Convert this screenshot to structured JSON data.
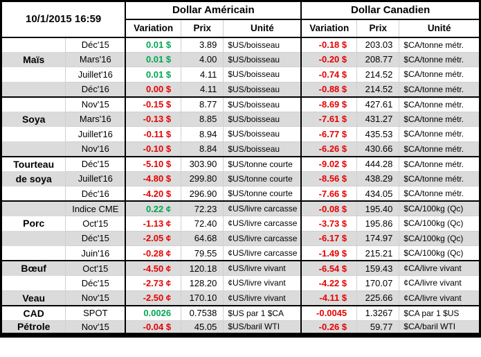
{
  "meta": {
    "timestamp": "10/1/2015 16:59"
  },
  "header": {
    "us_group": "Dollar Américain",
    "ca_group": "Dollar Canadien",
    "variation": "Variation",
    "prix": "Prix",
    "unite": "Unité"
  },
  "colors": {
    "positive": "#00a651",
    "negative": "#e60000",
    "band_gray": "#dbdbdb"
  },
  "blocks": [
    {
      "groups": [
        {
          "name": "Maïs",
          "label_lines": [
            "Maïs"
          ],
          "label_row": 1,
          "rows": [
            {
              "month": "Déc'15",
              "us_var": "0.01 $",
              "us_var_color": "green",
              "us_prix": "3.89",
              "us_unite": "$US/boisseau",
              "ca_var": "-0.18 $",
              "ca_var_color": "red",
              "ca_prix": "203.03",
              "ca_unite": "$CA/tonne métr."
            },
            {
              "month": "Mars'16",
              "us_var": "0.01 $",
              "us_var_color": "green",
              "us_prix": "4.00",
              "us_unite": "$US/boisseau",
              "ca_var": "-0.20 $",
              "ca_var_color": "red",
              "ca_prix": "208.77",
              "ca_unite": "$CA/tonne métr."
            },
            {
              "month": "Juillet'16",
              "us_var": "0.01 $",
              "us_var_color": "green",
              "us_prix": "4.11",
              "us_unite": "$US/boisseau",
              "ca_var": "-0.74 $",
              "ca_var_color": "red",
              "ca_prix": "214.52",
              "ca_unite": "$CA/tonne métr."
            },
            {
              "month": "Déc'16",
              "us_var": "0.00 $",
              "us_var_color": "red",
              "us_prix": "4.11",
              "us_unite": "$US/boisseau",
              "ca_var": "-0.88 $",
              "ca_var_color": "red",
              "ca_prix": "214.52",
              "ca_unite": "$CA/tonne métr."
            }
          ]
        }
      ]
    },
    {
      "groups": [
        {
          "name": "Soya",
          "label_lines": [
            "Soya"
          ],
          "label_row": 1,
          "rows": [
            {
              "month": "Nov'15",
              "us_var": "-0.15 $",
              "us_var_color": "red",
              "us_prix": "8.77",
              "us_unite": "$US/boisseau",
              "ca_var": "-8.69 $",
              "ca_var_color": "red",
              "ca_prix": "427.61",
              "ca_unite": "$CA/tonne métr."
            },
            {
              "month": "Mars'16",
              "us_var": "-0.13 $",
              "us_var_color": "red",
              "us_prix": "8.85",
              "us_unite": "$US/boisseau",
              "ca_var": "-7.61 $",
              "ca_var_color": "red",
              "ca_prix": "431.27",
              "ca_unite": "$CA/tonne métr."
            },
            {
              "month": "Juillet'16",
              "us_var": "-0.11 $",
              "us_var_color": "red",
              "us_prix": "8.94",
              "us_unite": "$US/boisseau",
              "ca_var": "-6.77 $",
              "ca_var_color": "red",
              "ca_prix": "435.53",
              "ca_unite": "$CA/tonne métr."
            },
            {
              "month": "Nov'16",
              "us_var": "-0.10 $",
              "us_var_color": "red",
              "us_prix": "8.84",
              "us_unite": "$US/boisseau",
              "ca_var": "-6.26 $",
              "ca_var_color": "red",
              "ca_prix": "430.66",
              "ca_unite": "$CA/tonne métr."
            }
          ]
        }
      ]
    },
    {
      "groups": [
        {
          "name": "Tourteau de soya",
          "label_lines": [
            "Tourteau",
            "de soya"
          ],
          "label_row": 0,
          "rows": [
            {
              "month": "Déc'15",
              "us_var": "-5.10 $",
              "us_var_color": "red",
              "us_prix": "303.90",
              "us_unite": "$US/tonne courte",
              "ca_var": "-9.02 $",
              "ca_var_color": "red",
              "ca_prix": "444.28",
              "ca_unite": "$CA/tonne métr."
            },
            {
              "month": "Juillet'16",
              "us_var": "-4.80 $",
              "us_var_color": "red",
              "us_prix": "299.80",
              "us_unite": "$US/tonne courte",
              "ca_var": "-8.56 $",
              "ca_var_color": "red",
              "ca_prix": "438.29",
              "ca_unite": "$CA/tonne métr."
            },
            {
              "month": "Déc'16",
              "us_var": "-4.20 $",
              "us_var_color": "red",
              "us_prix": "296.90",
              "us_unite": "$US/tonne courte",
              "ca_var": "-7.66 $",
              "ca_var_color": "red",
              "ca_prix": "434.05",
              "ca_unite": "$CA/tonne métr."
            }
          ]
        }
      ]
    },
    {
      "groups": [
        {
          "name": "Porc",
          "label_lines": [
            "Porc"
          ],
          "label_row": 1,
          "rows": [
            {
              "month": "Indice CME",
              "us_var": "0.22 ¢",
              "us_var_color": "green",
              "us_prix": "72.23",
              "us_unite": "¢US/livre carcasse",
              "ca_var": "-0.08 $",
              "ca_var_color": "red",
              "ca_prix": "195.40",
              "ca_unite": "$CA/100kg (Qc)"
            },
            {
              "month": "Oct'15",
              "us_var": "-1.13 ¢",
              "us_var_color": "red",
              "us_prix": "72.40",
              "us_unite": "¢US/livre carcasse",
              "ca_var": "-3.73 $",
              "ca_var_color": "red",
              "ca_prix": "195.86",
              "ca_unite": "$CA/100kg (Qc)"
            },
            {
              "month": "Déc'15",
              "us_var": "-2.05 ¢",
              "us_var_color": "red",
              "us_prix": "64.68",
              "us_unite": "¢US/livre carcasse",
              "ca_var": "-6.17 $",
              "ca_var_color": "red",
              "ca_prix": "174.97",
              "ca_unite": "$CA/100kg (Qc)"
            },
            {
              "month": "Juin'16",
              "us_var": "-0.28 ¢",
              "us_var_color": "red",
              "us_prix": "79.55",
              "us_unite": "¢US/livre carcasse",
              "ca_var": "-1.49 $",
              "ca_var_color": "red",
              "ca_prix": "215.21",
              "ca_unite": "$CA/100kg (Qc)"
            }
          ]
        }
      ]
    },
    {
      "groups": [
        {
          "name": "Bœuf",
          "label_lines": [
            "Bœuf"
          ],
          "label_row": 0,
          "rows": [
            {
              "month": "Oct'15",
              "us_var": "-4.50 ¢",
              "us_var_color": "red",
              "us_prix": "120.18",
              "us_unite": "¢US/livre vivant",
              "ca_var": "-6.54 $",
              "ca_var_color": "red",
              "ca_prix": "159.43",
              "ca_unite": "¢CA/livre vivant"
            },
            {
              "month": "Déc'15",
              "us_var": "-2.73 ¢",
              "us_var_color": "red",
              "us_prix": "128.20",
              "us_unite": "¢US/livre vivant",
              "ca_var": "-4.22 $",
              "ca_var_color": "red",
              "ca_prix": "170.07",
              "ca_unite": "¢CA/livre vivant"
            }
          ]
        },
        {
          "name": "Veau",
          "label_lines": [
            "Veau"
          ],
          "label_row": 0,
          "rows": [
            {
              "month": "Nov'15",
              "us_var": "-2.50 ¢",
              "us_var_color": "red",
              "us_prix": "170.10",
              "us_unite": "¢US/livre vivant",
              "ca_var": "-4.11 $",
              "ca_var_color": "red",
              "ca_prix": "225.66",
              "ca_unite": "¢CA/livre vivant"
            }
          ]
        }
      ]
    },
    {
      "groups": [
        {
          "name": "CAD",
          "label_lines": [
            "CAD"
          ],
          "label_row": 0,
          "rows": [
            {
              "month": "SPOT",
              "us_var": "0.0026",
              "us_var_color": "green",
              "us_prix": "0.7538",
              "us_unite": "$US par 1 $CA",
              "ca_var": "-0.0045",
              "ca_var_color": "red",
              "ca_prix": "1.3267",
              "ca_unite": "$CA par 1 $US"
            }
          ]
        },
        {
          "name": "Pétrole",
          "label_lines": [
            "Pétrole"
          ],
          "label_row": 0,
          "rows": [
            {
              "month": "Nov'15",
              "us_var": "-0.04 $",
              "us_var_color": "red",
              "us_prix": "45.05",
              "us_unite": "$US/baril WTI",
              "ca_var": "-0.26 $",
              "ca_var_color": "red",
              "ca_prix": "59.77",
              "ca_unite": "$CA/baril WTI"
            }
          ]
        }
      ]
    }
  ]
}
